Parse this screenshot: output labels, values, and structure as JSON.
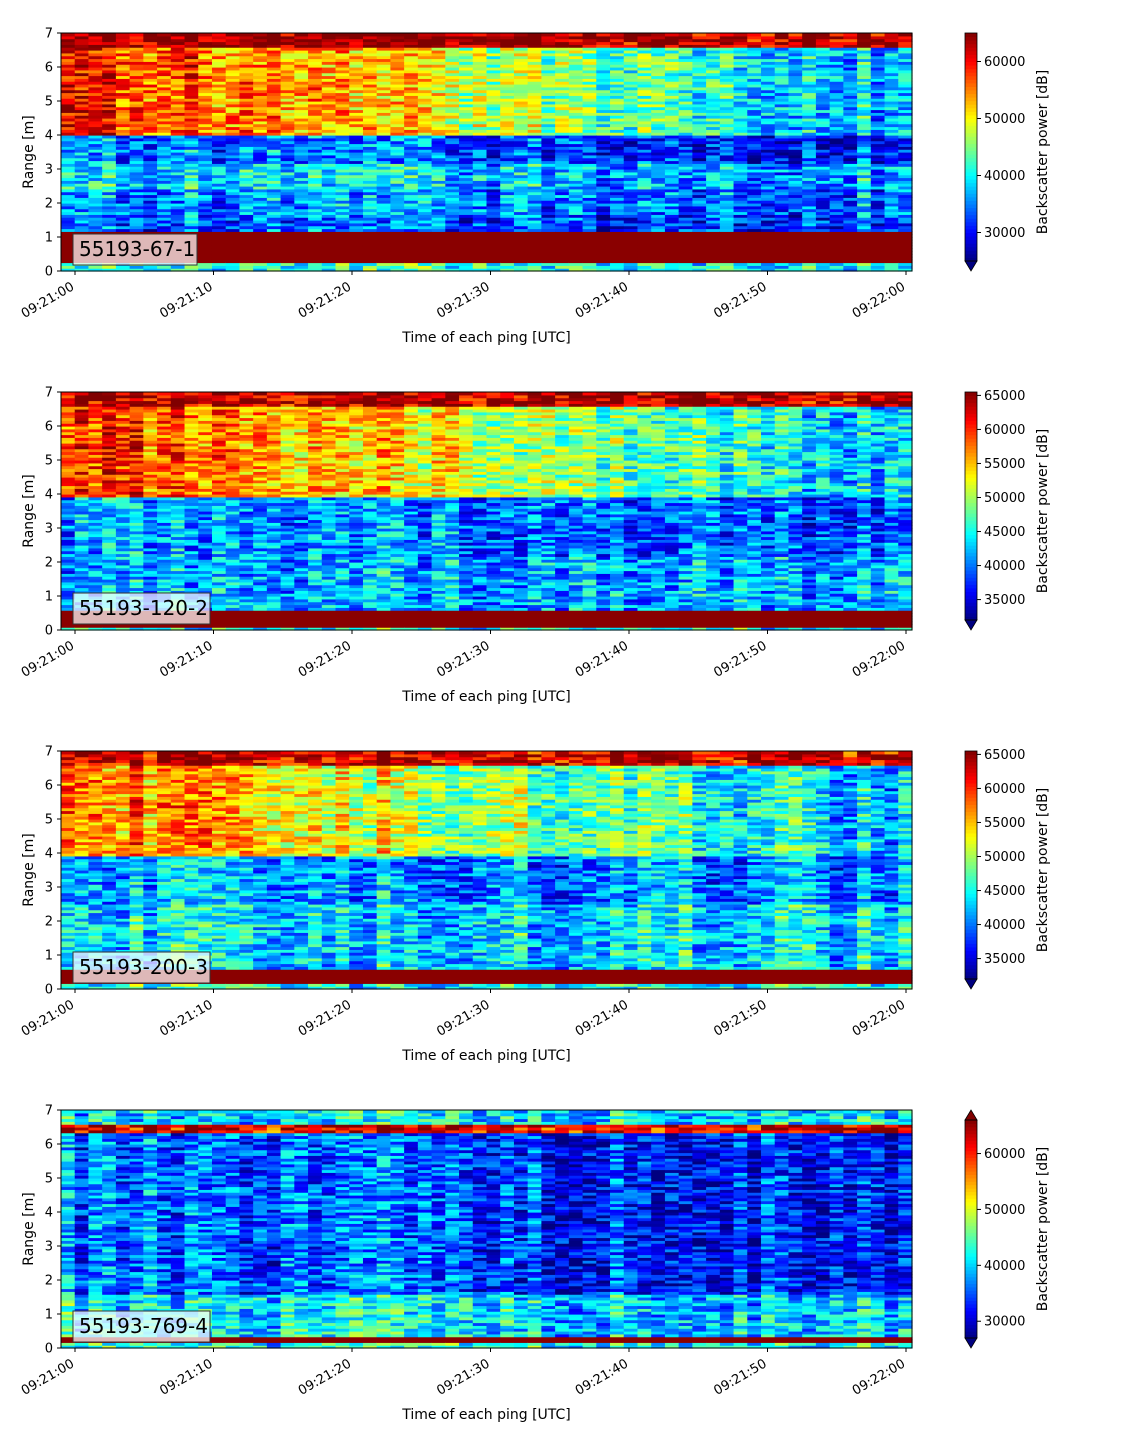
{
  "chart_data": [
    {
      "type": "heatmap",
      "id_label": "55193-67-1",
      "xlabel": "Time of each ping [UTC]",
      "ylabel": "Range [m]",
      "x_ticks": [
        "09:21:00",
        "09:21:10",
        "09:21:20",
        "09:21:30",
        "09:21:40",
        "09:21:50",
        "09:22:00"
      ],
      "x_range": [
        "09:21:00",
        "09:22:00"
      ],
      "y_ticks": [
        0,
        1,
        2,
        3,
        4,
        5,
        6,
        7
      ],
      "ylim": [
        0,
        7
      ],
      "colorbar": {
        "label": "Backscatter power [dB]",
        "ticks": [
          30000,
          40000,
          50000,
          60000
        ],
        "range": [
          25000,
          65000
        ],
        "extend": "min",
        "colormap": "jet"
      },
      "profile": {
        "bottom_return_m": [
          0.25,
          1.15
        ],
        "bands": [
          {
            "range_m": [
              1.15,
              1.7
            ],
            "level": 0.2
          },
          {
            "range_m": [
              1.7,
              2.4
            ],
            "level": 0.25
          },
          {
            "range_m": [
              2.4,
              3.2
            ],
            "level_start": 0.35,
            "level_end": 0.3
          },
          {
            "range_m": [
              3.2,
              4.0
            ],
            "level_start": 0.25,
            "level_end": 0.15
          },
          {
            "range_m": [
              4.0,
              6.6
            ],
            "level_start": 0.85,
            "level_end": 0.3
          },
          {
            "range_m": [
              6.6,
              7.0
            ],
            "level": 0.97
          }
        ]
      }
    },
    {
      "type": "heatmap",
      "id_label": "55193-120-2",
      "xlabel": "Time of each ping [UTC]",
      "ylabel": "Range [m]",
      "x_ticks": [
        "09:21:00",
        "09:21:10",
        "09:21:20",
        "09:21:30",
        "09:21:40",
        "09:21:50",
        "09:22:00"
      ],
      "x_range": [
        "09:21:00",
        "09:22:00"
      ],
      "y_ticks": [
        0,
        1,
        2,
        3,
        4,
        5,
        6,
        7
      ],
      "ylim": [
        0,
        7
      ],
      "colorbar": {
        "label": "Backscatter power [dB]",
        "ticks": [
          35000,
          40000,
          45000,
          50000,
          55000,
          60000,
          65000
        ],
        "range": [
          32000,
          65500
        ],
        "extend": "min",
        "colormap": "jet"
      },
      "profile": {
        "bottom_return_m": [
          0.1,
          0.55
        ],
        "bands": [
          {
            "range_m": [
              0.55,
              2.2
            ],
            "level": 0.3
          },
          {
            "range_m": [
              2.2,
              3.9
            ],
            "level_start": 0.3,
            "level_end": 0.2
          },
          {
            "range_m": [
              3.9,
              6.6
            ],
            "level_start": 0.85,
            "level_end": 0.3
          },
          {
            "range_m": [
              6.6,
              7.0
            ],
            "level": 0.95
          }
        ]
      }
    },
    {
      "type": "heatmap",
      "id_label": "55193-200-3",
      "xlabel": "Time of each ping [UTC]",
      "ylabel": "Range [m]",
      "x_ticks": [
        "09:21:00",
        "09:21:10",
        "09:21:20",
        "09:21:30",
        "09:21:40",
        "09:21:50",
        "09:22:00"
      ],
      "x_range": [
        "09:21:00",
        "09:22:00"
      ],
      "y_ticks": [
        0,
        1,
        2,
        3,
        4,
        5,
        6,
        7
      ],
      "ylim": [
        0,
        7
      ],
      "colorbar": {
        "label": "Backscatter power [dB]",
        "ticks": [
          35000,
          40000,
          45000,
          50000,
          55000,
          60000,
          65000
        ],
        "range": [
          32000,
          65500
        ],
        "extend": "min",
        "colormap": "jet"
      },
      "profile": {
        "bottom_return_m": [
          0.15,
          0.55
        ],
        "bands": [
          {
            "range_m": [
              0.55,
              2.5
            ],
            "level": 0.35
          },
          {
            "range_m": [
              2.5,
              3.9
            ],
            "level_start": 0.3,
            "level_end": 0.25
          },
          {
            "range_m": [
              3.9,
              6.6
            ],
            "level_start": 0.78,
            "level_end": 0.3
          },
          {
            "range_m": [
              6.6,
              7.0
            ],
            "level": 0.93
          }
        ]
      }
    },
    {
      "type": "heatmap",
      "id_label": "55193-769-4",
      "xlabel": "Time of each ping [UTC]",
      "ylabel": "Range [m]",
      "x_ticks": [
        "09:21:00",
        "09:21:10",
        "09:21:20",
        "09:21:30",
        "09:21:40",
        "09:21:50",
        "09:22:00"
      ],
      "x_range": [
        "09:21:00",
        "09:22:00"
      ],
      "y_ticks": [
        0,
        1,
        2,
        3,
        4,
        5,
        6,
        7
      ],
      "ylim": [
        0,
        7
      ],
      "colorbar": {
        "label": "Backscatter power [dB]",
        "ticks": [
          30000,
          40000,
          50000,
          60000
        ],
        "range": [
          27000,
          66000
        ],
        "extend": "both",
        "colormap": "jet"
      },
      "profile": {
        "bottom_return_m": [
          0.15,
          0.35
        ],
        "bands": [
          {
            "range_m": [
              0.35,
              1.6
            ],
            "level_start": 0.38,
            "level_end": 0.32
          },
          {
            "range_m": [
              1.6,
              6.3
            ],
            "level_start": 0.25,
            "level_end": 0.12
          },
          {
            "range_m": [
              6.3,
              6.6
            ],
            "level": 0.9
          },
          {
            "range_m": [
              6.6,
              7.0
            ],
            "level": 0.35
          }
        ]
      }
    }
  ]
}
